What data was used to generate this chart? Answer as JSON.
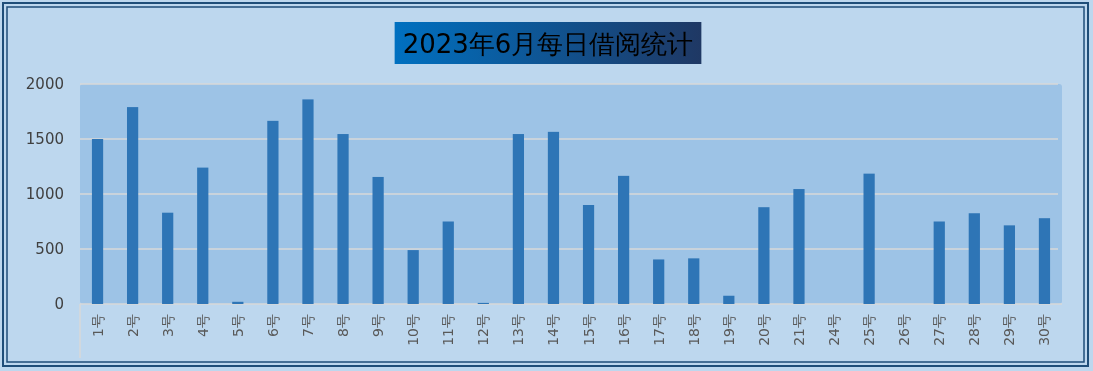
{
  "chart_data": {
    "type": "bar",
    "title": "2023年6月每日借阅统计",
    "categories": [
      "1号",
      "2号",
      "3号",
      "4号",
      "5号",
      "6号",
      "7号",
      "8号",
      "9号",
      "10号",
      "11号",
      "12号",
      "13号",
      "14号",
      "15号",
      "16号",
      "17号",
      "18号",
      "19号",
      "20号",
      "21号",
      "24号",
      "25号",
      "26号",
      "27号",
      "28号",
      "29号",
      "30号"
    ],
    "values": [
      1500,
      1790,
      830,
      1240,
      20,
      1665,
      1860,
      1545,
      1155,
      490,
      750,
      10,
      1545,
      1565,
      900,
      1165,
      405,
      415,
      75,
      880,
      1045,
      0,
      1185,
      0,
      750,
      825,
      715,
      780
    ],
    "color": "#2e75b6",
    "ylim": [
      0,
      2000
    ],
    "yticks": [
      0,
      500,
      1000,
      1500,
      2000
    ],
    "grid": "y"
  }
}
